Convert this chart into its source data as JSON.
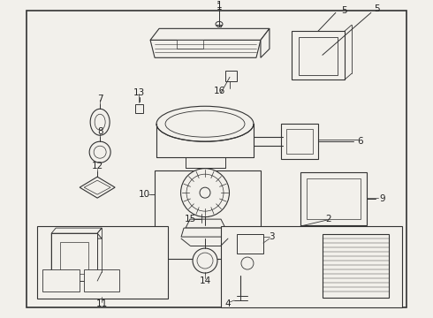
{
  "background_color": "#f2f0eb",
  "border_color": "#444444",
  "line_color": "#333333",
  "fig_width": 4.9,
  "fig_height": 3.6,
  "dpi": 100
}
